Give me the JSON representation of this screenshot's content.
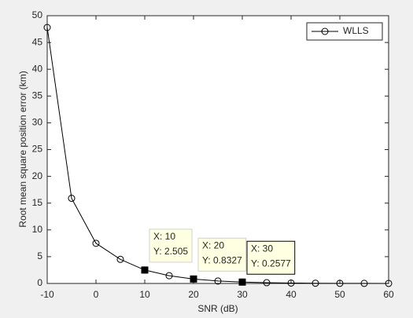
{
  "chart_data": {
    "type": "line",
    "xlabel": "SNR (dB)",
    "ylabel": "Root mean square position error (km)",
    "x": [
      -10,
      -5,
      0,
      5,
      10,
      15,
      20,
      25,
      30,
      35,
      40,
      45,
      50,
      55,
      60
    ],
    "series": [
      {
        "name": "WLLS",
        "color": "#000000",
        "values": [
          47.8,
          15.9,
          7.5,
          4.5,
          2.505,
          1.45,
          0.8327,
          0.45,
          0.2577,
          0.14,
          0.08,
          0.045,
          0.026,
          0.015,
          0.008
        ]
      }
    ],
    "xlim": [
      -10,
      60
    ],
    "xticks": [
      -10,
      0,
      10,
      20,
      30,
      40,
      50,
      60
    ],
    "ylim": [
      0,
      50
    ],
    "yticks": [
      0,
      5,
      10,
      15,
      20,
      25,
      30,
      35,
      40,
      45,
      50
    ],
    "legend": "upper right",
    "annotations": [
      {
        "x": 10,
        "y": 2.505,
        "lines": [
          "X: 10",
          "Y: 2.505"
        ]
      },
      {
        "x": 20,
        "y": 0.8327,
        "lines": [
          "X: 20",
          "Y: 0.8327"
        ]
      },
      {
        "x": 30,
        "y": 0.2577,
        "lines": [
          "X: 30",
          "Y: 0.2577"
        ]
      }
    ]
  }
}
